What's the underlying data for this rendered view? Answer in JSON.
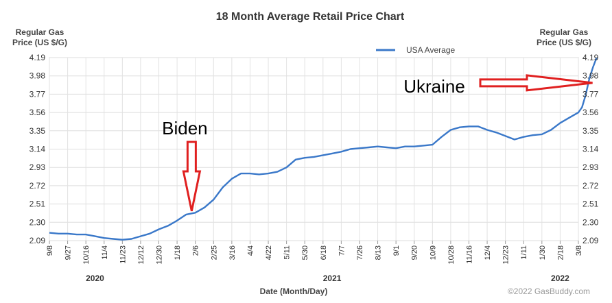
{
  "chart_data": {
    "type": "line",
    "title": "18 Month Average Retail Price Chart",
    "ylabel_left": [
      "Regular Gas",
      "Price (US $/G)"
    ],
    "ylabel_right": [
      "Regular Gas",
      "Price (US $/G)"
    ],
    "xlabel": "Date (Month/Day)",
    "ylim": [
      2.09,
      4.19
    ],
    "yticks": [
      "4.19",
      "3.98",
      "3.77",
      "3.56",
      "3.35",
      "3.14",
      "2.93",
      "2.72",
      "2.51",
      "2.30",
      "2.09"
    ],
    "xticks": [
      "9/8",
      "9/27",
      "10/16",
      "11/4",
      "11/23",
      "12/12",
      "12/30",
      "1/18",
      "2/6",
      "2/25",
      "3/16",
      "4/4",
      "4/22",
      "5/11",
      "5/30",
      "6/18",
      "7/7",
      "7/26",
      "8/13",
      "9/1",
      "9/20",
      "10/9",
      "10/28",
      "11/16",
      "12/4",
      "12/23",
      "1/11",
      "1/30",
      "2/18",
      "3/8"
    ],
    "year_labels": [
      {
        "label": "2020",
        "at_tick": 2.5
      },
      {
        "label": "2021",
        "at_tick": 15.5
      },
      {
        "label": "2022",
        "at_tick": 28
      }
    ],
    "grid": true,
    "legend": "top-right",
    "series": [
      {
        "name": "USA Average",
        "color": "#3a78c9",
        "points": [
          [
            0,
            2.18
          ],
          [
            0.5,
            2.17
          ],
          [
            1,
            2.17
          ],
          [
            1.5,
            2.16
          ],
          [
            2,
            2.16
          ],
          [
            2.5,
            2.14
          ],
          [
            3,
            2.12
          ],
          [
            3.5,
            2.11
          ],
          [
            4,
            2.1
          ],
          [
            4.5,
            2.11
          ],
          [
            5,
            2.14
          ],
          [
            5.5,
            2.17
          ],
          [
            6,
            2.22
          ],
          [
            6.5,
            2.26
          ],
          [
            7,
            2.32
          ],
          [
            7.5,
            2.39
          ],
          [
            8,
            2.41
          ],
          [
            8.5,
            2.47
          ],
          [
            9,
            2.56
          ],
          [
            9.5,
            2.7
          ],
          [
            10,
            2.8
          ],
          [
            10.5,
            2.86
          ],
          [
            11,
            2.86
          ],
          [
            11.5,
            2.85
          ],
          [
            12,
            2.86
          ],
          [
            12.5,
            2.88
          ],
          [
            13,
            2.93
          ],
          [
            13.5,
            3.02
          ],
          [
            14,
            3.04
          ],
          [
            14.5,
            3.05
          ],
          [
            15,
            3.07
          ],
          [
            15.5,
            3.09
          ],
          [
            16,
            3.11
          ],
          [
            16.5,
            3.14
          ],
          [
            17,
            3.15
          ],
          [
            17.5,
            3.16
          ],
          [
            18,
            3.17
          ],
          [
            18.5,
            3.16
          ],
          [
            19,
            3.15
          ],
          [
            19.5,
            3.17
          ],
          [
            20,
            3.17
          ],
          [
            20.5,
            3.18
          ],
          [
            21,
            3.19
          ],
          [
            21.5,
            3.28
          ],
          [
            22,
            3.36
          ],
          [
            22.5,
            3.39
          ],
          [
            23,
            3.4
          ],
          [
            23.5,
            3.4
          ],
          [
            24,
            3.36
          ],
          [
            24.5,
            3.33
          ],
          [
            25,
            3.29
          ],
          [
            25.5,
            3.25
          ],
          [
            26,
            3.28
          ],
          [
            26.5,
            3.3
          ],
          [
            27,
            3.31
          ],
          [
            27.5,
            3.36
          ],
          [
            28,
            3.44
          ],
          [
            28.5,
            3.5
          ],
          [
            29,
            3.56
          ],
          [
            29.2,
            3.62
          ],
          [
            29.4,
            3.76
          ],
          [
            29.6,
            3.95
          ],
          [
            29.8,
            4.08
          ],
          [
            30,
            4.19
          ]
        ]
      }
    ],
    "annotations": [
      {
        "text": "Biden",
        "arrow": "down",
        "x": 7.8,
        "y": 2.43
      },
      {
        "text": "Ukraine",
        "arrow": "right",
        "x": 30,
        "y": 3.9
      }
    ],
    "credit": "©2022 GasBuddy.com"
  }
}
